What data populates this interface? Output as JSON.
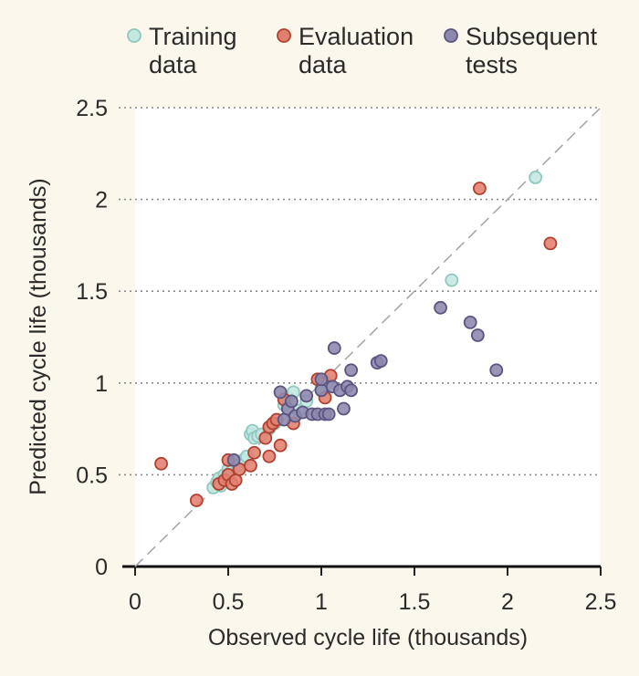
{
  "chart_data": {
    "type": "scatter",
    "xlabel": "Observed cycle life (thousands)",
    "ylabel": "Predicted cycle life (thousands)",
    "xlim": [
      0,
      2.5
    ],
    "ylim": [
      0,
      2.5
    ],
    "xticks": [
      "0",
      "0.5",
      "1",
      "1.5",
      "2",
      "2.5"
    ],
    "yticks": [
      "0",
      "0.5",
      "1",
      "1.5",
      "2",
      "2.5"
    ],
    "grid": "horizontal dotted",
    "reference_line": "y = x (dashed)",
    "legend_position": "top",
    "series": [
      {
        "name": "Training data",
        "legend_lines": [
          "Training",
          "data"
        ],
        "color": "#c3e7e1",
        "stroke": "#8fc9c0",
        "points": [
          [
            0.42,
            0.43
          ],
          [
            0.44,
            0.46
          ],
          [
            0.45,
            0.48
          ],
          [
            0.46,
            0.44
          ],
          [
            0.48,
            0.5
          ],
          [
            0.5,
            0.53
          ],
          [
            0.52,
            0.52
          ],
          [
            0.55,
            0.55
          ],
          [
            0.58,
            0.58
          ],
          [
            0.6,
            0.6
          ],
          [
            0.62,
            0.72
          ],
          [
            0.63,
            0.74
          ],
          [
            0.64,
            0.7
          ],
          [
            0.66,
            0.71
          ],
          [
            0.68,
            0.72
          ],
          [
            0.72,
            0.75
          ],
          [
            0.75,
            0.78
          ],
          [
            0.8,
            0.88
          ],
          [
            0.82,
            0.92
          ],
          [
            0.85,
            0.95
          ],
          [
            0.88,
            0.85
          ],
          [
            0.92,
            0.9
          ],
          [
            1.0,
            0.97
          ],
          [
            1.03,
            1.0
          ],
          [
            1.7,
            1.56
          ],
          [
            2.15,
            2.12
          ]
        ]
      },
      {
        "name": "Evaluation data",
        "legend_lines": [
          "Evaluation",
          "data"
        ],
        "color": "#e2806f",
        "stroke": "#b0412f",
        "points": [
          [
            0.14,
            0.56
          ],
          [
            0.33,
            0.36
          ],
          [
            0.45,
            0.45
          ],
          [
            0.48,
            0.47
          ],
          [
            0.5,
            0.5
          ],
          [
            0.5,
            0.58
          ],
          [
            0.52,
            0.45
          ],
          [
            0.54,
            0.47
          ],
          [
            0.56,
            0.53
          ],
          [
            0.62,
            0.55
          ],
          [
            0.64,
            0.62
          ],
          [
            0.7,
            0.7
          ],
          [
            0.72,
            0.6
          ],
          [
            0.72,
            0.76
          ],
          [
            0.74,
            0.78
          ],
          [
            0.76,
            0.8
          ],
          [
            0.78,
            0.66
          ],
          [
            0.8,
            0.91
          ],
          [
            0.85,
            0.78
          ],
          [
            0.98,
            1.02
          ],
          [
            1.02,
            0.92
          ],
          [
            1.05,
            1.04
          ],
          [
            1.85,
            2.06
          ],
          [
            2.23,
            1.76
          ]
        ]
      },
      {
        "name": "Subsequent tests",
        "legend_lines": [
          "Subsequent",
          "tests"
        ],
        "color": "#8d88ad",
        "stroke": "#5a5580",
        "points": [
          [
            0.53,
            0.58
          ],
          [
            0.78,
            0.95
          ],
          [
            0.8,
            0.8
          ],
          [
            0.82,
            0.86
          ],
          [
            0.84,
            0.9
          ],
          [
            0.86,
            0.82
          ],
          [
            0.9,
            0.84
          ],
          [
            0.92,
            0.93
          ],
          [
            0.95,
            0.83
          ],
          [
            0.98,
            0.83
          ],
          [
            1.0,
            0.96
          ],
          [
            1.0,
            1.02
          ],
          [
            1.02,
            0.83
          ],
          [
            1.04,
            0.83
          ],
          [
            1.06,
            0.98
          ],
          [
            1.07,
            1.19
          ],
          [
            1.1,
            0.96
          ],
          [
            1.12,
            0.86
          ],
          [
            1.14,
            0.98
          ],
          [
            1.16,
            0.96
          ],
          [
            1.16,
            1.07
          ],
          [
            1.3,
            1.11
          ],
          [
            1.32,
            1.12
          ],
          [
            1.64,
            1.41
          ],
          [
            1.8,
            1.33
          ],
          [
            1.84,
            1.26
          ],
          [
            1.94,
            1.07
          ]
        ]
      }
    ]
  }
}
